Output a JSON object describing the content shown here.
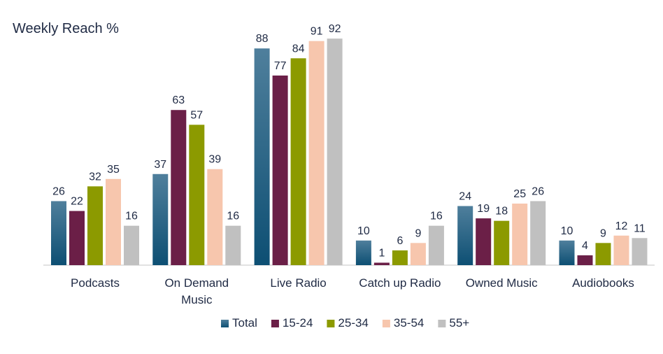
{
  "chart_data": {
    "type": "bar",
    "title": "Weekly Reach %",
    "xlabel": "",
    "ylabel": "",
    "ylim": [
      0,
      100
    ],
    "grid": false,
    "legend_position": "bottom",
    "categories": [
      [
        "Podcasts"
      ],
      [
        "On Demand",
        "Music"
      ],
      [
        "Live Radio"
      ],
      [
        "Catch up Radio"
      ],
      [
        "Owned Music"
      ],
      [
        "Audiobooks"
      ]
    ],
    "series": [
      {
        "name": "Total",
        "color": "#1f5f7f",
        "values": [
          26,
          37,
          88,
          10,
          24,
          10
        ]
      },
      {
        "name": "15-24",
        "color": "#6b1f47",
        "values": [
          22,
          63,
          77,
          1,
          19,
          4
        ]
      },
      {
        "name": "25-34",
        "color": "#8c9a00",
        "values": [
          32,
          57,
          84,
          6,
          18,
          9
        ]
      },
      {
        "name": "35-54",
        "color": "#f7c6ad",
        "values": [
          35,
          39,
          91,
          9,
          25,
          12
        ]
      },
      {
        "name": "55+",
        "color": "#c0c0c0",
        "values": [
          16,
          16,
          92,
          16,
          26,
          11
        ]
      }
    ]
  }
}
